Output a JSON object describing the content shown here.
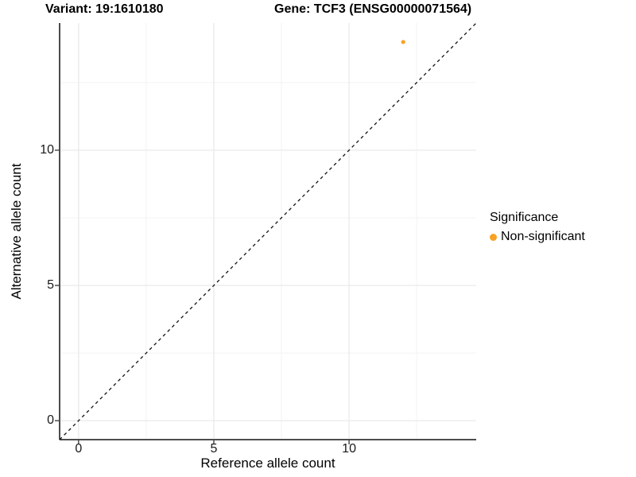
{
  "titles": {
    "variant": "Variant: 19:1610180",
    "gene": "Gene: TCF3 (ENSG00000071564)"
  },
  "chart_data": {
    "type": "scatter",
    "title_left": "Variant: 19:1610180",
    "title_right": "Gene: TCF3 (ENSG00000071564)",
    "xlabel": "Reference allele count",
    "ylabel": "Alternative allele count",
    "xlim": [
      -0.7,
      14.7
    ],
    "ylim": [
      -0.7,
      14.7
    ],
    "x_major_ticks": {
      "values": [
        0,
        5,
        10
      ],
      "labels": [
        "0",
        "5",
        "10"
      ]
    },
    "y_major_ticks": {
      "values": [
        0,
        5,
        10
      ],
      "labels": [
        "0",
        "5",
        "10"
      ]
    },
    "x_minor_ticks": [
      2.5,
      7.5,
      12.5
    ],
    "y_minor_ticks": [
      2.5,
      7.5,
      12.5
    ],
    "grid": true,
    "identity_line": {
      "equation": "y = x",
      "style": "dashed",
      "color": "#111111"
    },
    "series": [
      {
        "name": "Non-significant",
        "color": "#F9A127",
        "points": [
          {
            "x": 12,
            "y": 14
          }
        ]
      }
    ],
    "legend": {
      "title": "Significance",
      "position": "right",
      "items": [
        {
          "label": "Non-significant",
          "color": "#F9A127"
        }
      ]
    },
    "colors": {
      "background": "#FFFFFF",
      "grid_major": "#E8E8E8",
      "grid_minor": "#F3F3F3",
      "axis_line": "#4D4D4D",
      "tick_mark": "#4D4D4D",
      "point": "#F9A127"
    }
  }
}
